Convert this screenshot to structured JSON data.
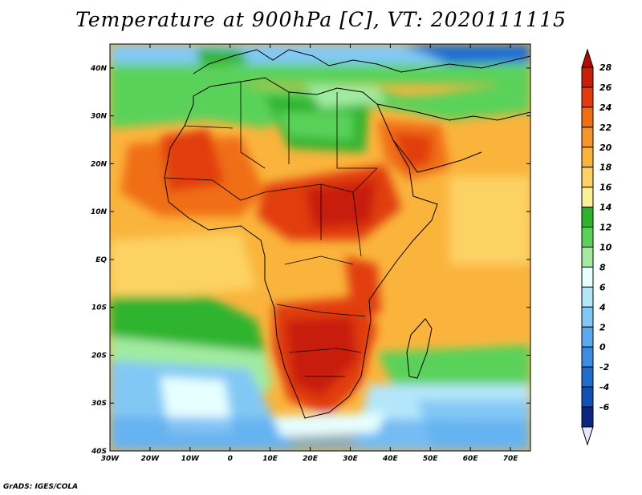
{
  "title": "Temperature at 900hPa [C], VT: 2020111115",
  "credit": "GrADS: IGES/COLA",
  "map": {
    "lon_range": [
      -30,
      75
    ],
    "lat_range": [
      -40,
      45
    ],
    "lon_ticks": [
      {
        "value": -30,
        "label": "30W"
      },
      {
        "value": -20,
        "label": "20W"
      },
      {
        "value": -10,
        "label": "10W"
      },
      {
        "value": 0,
        "label": "0"
      },
      {
        "value": 10,
        "label": "10E"
      },
      {
        "value": 20,
        "label": "20E"
      },
      {
        "value": 30,
        "label": "30E"
      },
      {
        "value": 40,
        "label": "40E"
      },
      {
        "value": 50,
        "label": "50E"
      },
      {
        "value": 60,
        "label": "60E"
      },
      {
        "value": 70,
        "label": "70E"
      }
    ],
    "lat_ticks": [
      {
        "value": 40,
        "label": "40N"
      },
      {
        "value": 30,
        "label": "30N"
      },
      {
        "value": 20,
        "label": "20N"
      },
      {
        "value": 10,
        "label": "10N"
      },
      {
        "value": 0,
        "label": "EQ"
      },
      {
        "value": -10,
        "label": "10S"
      },
      {
        "value": -20,
        "label": "20S"
      },
      {
        "value": -30,
        "label": "30S"
      },
      {
        "value": -40,
        "label": "40S"
      }
    ]
  },
  "colorbar": {
    "levels": [
      {
        "label": "28",
        "color": "#c81e0a"
      },
      {
        "label": "26",
        "color": "#e13c0f"
      },
      {
        "label": "24",
        "color": "#f06e14"
      },
      {
        "label": "22",
        "color": "#f59628"
      },
      {
        "label": "20",
        "color": "#fab43c"
      },
      {
        "label": "18",
        "color": "#fcd264"
      },
      {
        "label": "16",
        "color": "#fcf096"
      },
      {
        "label": "14",
        "color": "#2db42d"
      },
      {
        "label": "12",
        "color": "#5ad25a"
      },
      {
        "label": "10",
        "color": "#a0eba0"
      },
      {
        "label": "8",
        "color": "#e6ffff"
      },
      {
        "label": "6",
        "color": "#b4e6fa"
      },
      {
        "label": "4",
        "color": "#82c8f5"
      },
      {
        "label": "2",
        "color": "#5aaaf0"
      },
      {
        "label": "0",
        "color": "#3c8ce6"
      },
      {
        "label": "-2",
        "color": "#1e6ed2"
      },
      {
        "label": "-4",
        "color": "#1450b4"
      },
      {
        "label": "-6",
        "color": "#0a2882"
      }
    ],
    "top_arrow_color": "#b40a00",
    "bottom_arrow_color": "#e6e6ff"
  }
}
